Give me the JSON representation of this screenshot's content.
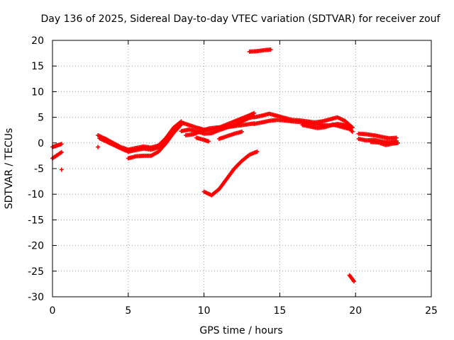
{
  "chart_data": {
    "type": "scatter",
    "title": "Day 136 of 2025, Sidereal Day-to-day VTEC variation (SDTVAR) for receiver zouf",
    "xlabel": "GPS time / hours",
    "ylabel": "SDTVAR / TECUs",
    "xlim": [
      0,
      25
    ],
    "ylim": [
      -30,
      20
    ],
    "xticks": [
      0,
      5,
      10,
      15,
      20,
      25
    ],
    "yticks": [
      20,
      15,
      10,
      5,
      0,
      -5,
      -10,
      -15,
      -20,
      -25,
      -30
    ],
    "grid": true,
    "marker": "plus",
    "series": [
      {
        "name": "SDTVAR",
        "color": "#ff0000",
        "tracks": [
          {
            "x": [
              0.0,
              0.2,
              0.4,
              0.6
            ],
            "y": [
              -0.8,
              -0.6,
              -0.4,
              -0.2
            ]
          },
          {
            "x": [
              0.0,
              0.2,
              0.4,
              0.6
            ],
            "y": [
              -3.0,
              -2.6,
              -2.2,
              -1.8
            ]
          },
          {
            "x": [
              0.6
            ],
            "y": [
              -5.2
            ]
          },
          {
            "x": [
              3.0
            ],
            "y": [
              -0.8
            ]
          },
          {
            "x": [
              3.0,
              3.5,
              4.0,
              4.5,
              5.0,
              5.5,
              6.0,
              6.5,
              7.0,
              7.5,
              8.0,
              8.5
            ],
            "y": [
              1.5,
              0.8,
              0.0,
              -0.8,
              -1.3,
              -1.0,
              -0.7,
              -0.9,
              -0.5,
              1.0,
              3.0,
              4.2
            ]
          },
          {
            "x": [
              3.1,
              3.6,
              4.1,
              4.6,
              5.0,
              5.5,
              6.0,
              6.5,
              7.0,
              7.5,
              8.0,
              8.3
            ],
            "y": [
              0.9,
              0.2,
              -0.5,
              -1.2,
              -1.7,
              -1.4,
              -1.1,
              -1.3,
              -0.9,
              0.6,
              2.4,
              3.4
            ]
          },
          {
            "x": [
              5.0,
              5.5,
              6.0,
              6.5,
              7.0,
              7.5,
              8.0,
              8.5
            ],
            "y": [
              -3.0,
              -2.6,
              -2.5,
              -2.5,
              -1.7,
              0.0,
              2.0,
              3.6
            ]
          },
          {
            "x": [
              8.5,
              9.0,
              9.5,
              10.0,
              10.5,
              11.0,
              11.5,
              12.0,
              12.5,
              13.0,
              13.3
            ],
            "y": [
              2.3,
              2.6,
              2.3,
              1.8,
              1.9,
              2.5,
              3.0,
              3.5,
              4.2,
              4.9,
              5.1
            ]
          },
          {
            "x": [
              8.5,
              9.0,
              9.5,
              10.0,
              10.5,
              11.0,
              11.5,
              12.0,
              12.5,
              13.0,
              13.3
            ],
            "y": [
              4.0,
              3.5,
              3.0,
              2.6,
              2.6,
              3.0,
              3.6,
              4.2,
              4.8,
              5.4,
              5.8
            ]
          },
          {
            "x": [
              8.8,
              9.3,
              9.8,
              10.3,
              10.8,
              11.3,
              11.8,
              12.3,
              12.8,
              13.3
            ],
            "y": [
              1.5,
              1.7,
              2.3,
              2.8,
              3.0,
              3.1,
              3.2,
              3.4,
              3.6,
              3.8
            ]
          },
          {
            "x": [
              9.5,
              10.0,
              10.3
            ],
            "y": [
              1.0,
              0.6,
              0.3
            ]
          },
          {
            "x": [
              10.0,
              10.5,
              11.0,
              11.5,
              12.0,
              12.5,
              13.0,
              13.5
            ],
            "y": [
              -9.5,
              -10.2,
              -9.0,
              -7.0,
              -5.0,
              -3.5,
              -2.3,
              -1.7
            ]
          },
          {
            "x": [
              11.0,
              11.5,
              12.0,
              12.5
            ],
            "y": [
              0.8,
              1.3,
              1.8,
              2.2
            ]
          },
          {
            "x": [
              13.0,
              13.5,
              14.0,
              14.4
            ],
            "y": [
              17.8,
              17.9,
              18.1,
              18.2
            ]
          },
          {
            "x": [
              13.3,
              13.8,
              14.3,
              14.8,
              15.3,
              15.8,
              16.3,
              16.8,
              17.3,
              17.8,
              18.3,
              18.8,
              19.3,
              19.8
            ],
            "y": [
              3.7,
              4.0,
              4.3,
              4.5,
              4.4,
              4.2,
              4.1,
              3.9,
              3.7,
              3.5,
              3.4,
              3.7,
              3.5,
              2.2
            ]
          },
          {
            "x": [
              13.3,
              13.8,
              14.3,
              14.8,
              15.3,
              15.8,
              16.3,
              16.8,
              17.3,
              17.8,
              18.3,
              18.8,
              19.3,
              19.8
            ],
            "y": [
              5.0,
              5.3,
              5.7,
              5.3,
              4.9,
              4.5,
              4.4,
              4.2,
              4.0,
              4.2,
              4.6,
              5.0,
              4.3,
              3.0
            ]
          },
          {
            "x": [
              16.5,
              17.0,
              17.5,
              18.0,
              18.5,
              19.0,
              19.5
            ],
            "y": [
              3.5,
              3.2,
              2.9,
              3.1,
              3.6,
              3.2,
              2.8
            ]
          },
          {
            "x": [
              19.6,
              19.7,
              19.8,
              19.9
            ],
            "y": [
              -25.8,
              -26.2,
              -26.6,
              -27.0
            ]
          },
          {
            "x": [
              20.2,
              20.7,
              21.2,
              21.7,
              22.2,
              22.7
            ],
            "y": [
              1.8,
              1.7,
              1.5,
              1.2,
              0.9,
              1.0
            ]
          },
          {
            "x": [
              20.2,
              20.7,
              21.2,
              21.7,
              22.2,
              22.7
            ],
            "y": [
              0.8,
              0.5,
              0.6,
              0.3,
              0.1,
              0.4
            ]
          },
          {
            "x": [
              21.0,
              21.5,
              22.0,
              22.5,
              22.8
            ],
            "y": [
              0.2,
              0.1,
              -0.4,
              -0.1,
              0.0
            ]
          }
        ]
      }
    ]
  }
}
